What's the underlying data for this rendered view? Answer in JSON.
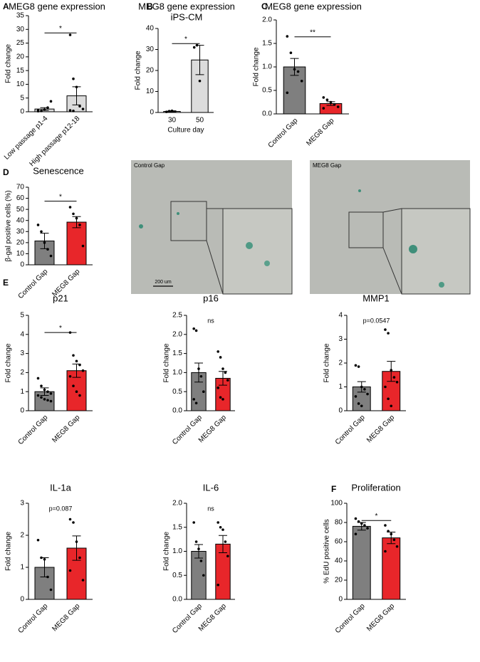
{
  "chart_data": [
    {
      "type": "bar",
      "panel": "A",
      "title": "MEG8 gene expression",
      "ylabel": "Fold change",
      "categories": [
        "Low passage p1-4",
        "High passage p12-18"
      ],
      "values": [
        1.0,
        5.8
      ],
      "errors": [
        0.5,
        3.3
      ],
      "points": [
        [
          0.5,
          0.3,
          0.8,
          1.5,
          3.8,
          0.2
        ],
        [
          28,
          12,
          9,
          2,
          1,
          0.5,
          0.3
        ]
      ],
      "colors": [
        "#dcdcdc",
        "#dcdcdc"
      ],
      "ylim": [
        0,
        35
      ],
      "yticks": [
        0,
        5,
        10,
        15,
        20,
        25,
        30,
        35
      ],
      "annotation": "*",
      "bracket": true
    },
    {
      "type": "bar",
      "panel": "B",
      "title": "MEG8 gene expression",
      "subtitle": "iPS-CM",
      "ylabel": "Fold change",
      "xlabel": "Culture day",
      "categories": [
        "30",
        "50"
      ],
      "values": [
        0.5,
        25
      ],
      "errors": [
        0.3,
        7
      ],
      "points": [
        [
          0.3,
          0.6,
          0.8
        ],
        [
          31,
          32,
          15
        ]
      ],
      "colors": [
        "#dcdcdc",
        "#dcdcdc"
      ],
      "ylim": [
        0,
        40
      ],
      "yticks": [
        0,
        10,
        20,
        30,
        40
      ],
      "annotation": "*",
      "bracket": true
    },
    {
      "type": "bar",
      "panel": "C",
      "title": "MEG8 gene expression",
      "ylabel": "Fold change",
      "categories": [
        "Control Gap",
        "MEG8 Gap"
      ],
      "values": [
        1.0,
        0.22
      ],
      "errors": [
        0.18,
        0.04
      ],
      "points": [
        [
          1.65,
          1.3,
          0.95,
          0.9,
          0.7,
          0.45
        ],
        [
          0.35,
          0.3,
          0.25,
          0.2,
          0.15,
          0.12
        ]
      ],
      "colors": [
        "#7f7f7f",
        "#e8262a"
      ],
      "ylim": [
        0,
        2
      ],
      "yticks": [
        {
          "value": 0,
          "label": "0.0"
        },
        {
          "value": 0.5,
          "label": "0.5"
        },
        {
          "value": 1,
          "label": "1.0"
        },
        {
          "value": 1.5,
          "label": "1.5"
        },
        {
          "value": 2,
          "label": "2.0"
        }
      ],
      "annotation": "**",
      "bracket": true
    },
    {
      "type": "bar",
      "panel": "D",
      "title": "Senescence",
      "ylabel": "β-gal positive cells (%)",
      "categories": [
        "Control Gap",
        "MEG8 Gap"
      ],
      "values": [
        21.5,
        38.5
      ],
      "errors": [
        7,
        5
      ],
      "points": [
        [
          36,
          30,
          20,
          14,
          8
        ],
        [
          52,
          46,
          42,
          36,
          17
        ]
      ],
      "colors": [
        "#7f7f7f",
        "#e8262a"
      ],
      "ylim": [
        0,
        70
      ],
      "yticks": [
        0,
        10,
        20,
        30,
        40,
        50,
        60,
        70
      ],
      "annotation": "*",
      "bracket": true
    },
    {
      "type": "bar",
      "panel": "E",
      "title": "p21",
      "ylabel": "Fold change",
      "categories": [
        "Control Gap",
        "MEG8 Gap"
      ],
      "values": [
        1.0,
        2.1
      ],
      "errors": [
        0.2,
        0.35
      ],
      "points": [
        [
          1.7,
          1.3,
          1.1,
          1.0,
          0.9,
          0.8,
          0.7,
          0.6,
          0.55,
          0.5
        ],
        [
          4.1,
          2.9,
          2.6,
          2.4,
          2.1,
          1.8,
          1.3,
          1.0,
          0.8
        ]
      ],
      "colors": [
        "#7f7f7f",
        "#e8262a"
      ],
      "ylim": [
        0,
        5
      ],
      "yticks": [
        0,
        1,
        2,
        3,
        4,
        5
      ],
      "annotation": "*",
      "bracket": true
    },
    {
      "type": "bar",
      "title": "p16",
      "ylabel": "Fold change",
      "categories": [
        "Control Gap",
        "MEG8 Gap"
      ],
      "values": [
        1.0,
        0.85
      ],
      "errors": [
        0.25,
        0.18
      ],
      "points": [
        [
          2.15,
          2.1,
          1.1,
          0.9,
          0.5,
          0.3,
          0.2
        ],
        [
          1.55,
          1.4,
          1.1,
          1.0,
          0.8,
          0.6,
          0.35,
          0.3
        ]
      ],
      "colors": [
        "#7f7f7f",
        "#e8262a"
      ],
      "ylim": [
        0,
        2.5
      ],
      "yticks": [
        {
          "value": 0,
          "label": "0.0"
        },
        {
          "value": 0.5,
          "label": "0.5"
        },
        {
          "value": 1,
          "label": "1.0"
        },
        {
          "value": 1.5,
          "label": "1.5"
        },
        {
          "value": 2,
          "label": "2.0"
        },
        {
          "value": 2.5,
          "label": "2.5"
        }
      ],
      "annotation": "ns",
      "bracket": false
    },
    {
      "type": "bar",
      "title": "MMP1",
      "ylabel": "Fold change",
      "categories": [
        "Control Gap",
        "MEG8 Gap"
      ],
      "values": [
        1.0,
        1.65
      ],
      "errors": [
        0.22,
        0.42
      ],
      "points": [
        [
          1.9,
          1.85,
          1.0,
          0.9,
          0.7,
          0.6,
          0.3,
          0.2
        ],
        [
          3.4,
          3.25,
          1.7,
          1.4,
          1.2,
          1.0,
          0.5,
          0.2
        ]
      ],
      "colors": [
        "#7f7f7f",
        "#e8262a"
      ],
      "ylim": [
        0,
        4
      ],
      "yticks": [
        0,
        1,
        2,
        3,
        4
      ],
      "annotation": "p=0.0547",
      "bracket": false
    },
    {
      "type": "bar",
      "title": "IL-1a",
      "ylabel": "Fold change",
      "categories": [
        "Control Gap",
        "MEG8 Gap"
      ],
      "values": [
        1.0,
        1.6
      ],
      "errors": [
        0.3,
        0.38
      ],
      "points": [
        [
          1.85,
          1.3,
          1.25,
          0.7,
          0.3
        ],
        [
          2.5,
          2.4,
          1.8,
          1.3,
          0.6,
          0.9
        ]
      ],
      "colors": [
        "#7f7f7f",
        "#e8262a"
      ],
      "ylim": [
        0,
        3
      ],
      "yticks": [
        0,
        1,
        2,
        3
      ],
      "annotation": "p=0.087",
      "bracket": false
    },
    {
      "type": "bar",
      "title": "IL-6",
      "ylabel": "Fold change",
      "categories": [
        "Control Gap",
        "MEG8 Gap"
      ],
      "values": [
        1.0,
        1.15
      ],
      "errors": [
        0.14,
        0.18
      ],
      "points": [
        [
          1.6,
          1.2,
          1.05,
          0.8,
          0.5
        ],
        [
          1.6,
          1.5,
          1.45,
          1.2,
          0.9,
          0.3
        ]
      ],
      "colors": [
        "#7f7f7f",
        "#e8262a"
      ],
      "ylim": [
        0,
        2
      ],
      "yticks": [
        {
          "value": 0,
          "label": "0.0"
        },
        {
          "value": 0.5,
          "label": "0.5"
        },
        {
          "value": 1,
          "label": "1.0"
        },
        {
          "value": 1.5,
          "label": "1.5"
        },
        {
          "value": 2,
          "label": "2.0"
        }
      ],
      "annotation": "ns",
      "bracket": false
    },
    {
      "type": "bar",
      "panel": "F",
      "title": "Proliferation",
      "ylabel": "% EdU positive cells",
      "categories": [
        "Control Gap",
        "MEG8 Gap"
      ],
      "values": [
        76,
        64
      ],
      "errors": [
        4,
        6
      ],
      "points": [
        [
          84,
          81,
          79,
          77,
          74,
          68
        ],
        [
          77,
          71,
          68,
          62,
          55,
          50
        ]
      ],
      "colors": [
        "#7f7f7f",
        "#e8262a"
      ],
      "ylim": [
        0,
        100
      ],
      "yticks": [
        0,
        20,
        40,
        60,
        80,
        100
      ],
      "annotation": "*",
      "bracket": true
    }
  ],
  "images": [
    {
      "label": "Control Gap",
      "scale": "200 um"
    },
    {
      "label": "MEG8 Gap"
    }
  ]
}
